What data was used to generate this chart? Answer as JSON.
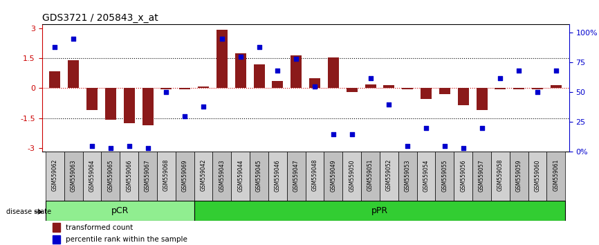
{
  "title": "GDS3721 / 205843_x_at",
  "samples": [
    "GSM559062",
    "GSM559063",
    "GSM559064",
    "GSM559065",
    "GSM559066",
    "GSM559067",
    "GSM559068",
    "GSM559069",
    "GSM559042",
    "GSM559043",
    "GSM559044",
    "GSM559045",
    "GSM559046",
    "GSM559047",
    "GSM559048",
    "GSM559049",
    "GSM559050",
    "GSM559051",
    "GSM559052",
    "GSM559053",
    "GSM559054",
    "GSM559055",
    "GSM559056",
    "GSM559057",
    "GSM559058",
    "GSM559059",
    "GSM559060",
    "GSM559061"
  ],
  "bar_values": [
    0.85,
    1.4,
    -1.1,
    -1.6,
    -1.75,
    -1.85,
    -0.05,
    -0.05,
    0.1,
    2.95,
    1.75,
    1.2,
    0.35,
    1.65,
    0.5,
    1.55,
    -0.2,
    0.2,
    0.15,
    -0.05,
    -0.55,
    -0.3,
    -0.85,
    -1.1,
    -0.05,
    -0.05,
    -0.05,
    0.15
  ],
  "dot_values": [
    88,
    95,
    5,
    3,
    5,
    3,
    50,
    30,
    38,
    95,
    80,
    88,
    68,
    78,
    55,
    15,
    15,
    62,
    40,
    5,
    20,
    5,
    3,
    20,
    62,
    68,
    50,
    68
  ],
  "pCR_count": 8,
  "pPR_count": 20,
  "bar_color": "#8B1A1A",
  "dot_color": "#0000CD",
  "yticks_left": [
    -3,
    -1.5,
    0,
    1.5,
    3
  ],
  "yticks_right": [
    0,
    25,
    50,
    75,
    100
  ],
  "ytick_labels_left": [
    "-3",
    "-1.5",
    "0",
    "1.5",
    "3"
  ],
  "ytick_labels_right": [
    "0%",
    "25",
    "50",
    "75",
    "100%"
  ],
  "hlines": [
    0,
    1.5,
    -1.5
  ],
  "ylim": [
    -3.2,
    3.2
  ],
  "right_ylim": [
    0,
    107
  ],
  "legend_items": [
    "transformed count",
    "percentile rank within the sample"
  ],
  "pCR_label": "pCR",
  "pPR_label": "pPR",
  "disease_state_label": "disease state",
  "pCR_color": "#90EE90",
  "pPR_color": "#32CD32",
  "bar_width": 0.6
}
